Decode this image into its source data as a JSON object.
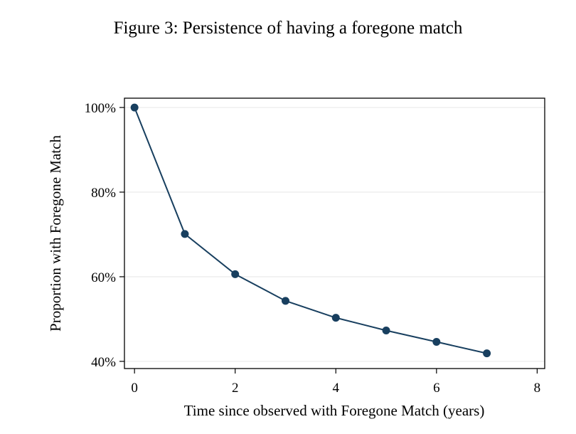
{
  "figure": {
    "title": "Figure 3: Persistence of having a foregone match"
  },
  "chart_data": {
    "type": "line",
    "title": "Figure 3: Persistence of having a foregone match",
    "xlabel": "Time since observed with Foregone Match (years)",
    "ylabel": "Proportion with Foregone Match",
    "x": [
      0,
      1,
      2,
      3,
      4,
      5,
      6,
      7
    ],
    "series": [
      {
        "values": [
          100,
          70.1,
          60.6,
          54.3,
          50.3,
          47.3,
          44.6,
          41.9
        ],
        "color": "#183f5f"
      }
    ],
    "xlim": [
      -0.2,
      8.15
    ],
    "ylim": [
      38.3,
      102.2
    ],
    "xticks": [
      0,
      2,
      4,
      6,
      8
    ],
    "xtick_labels": [
      "0",
      "2",
      "4",
      "6",
      "8"
    ],
    "yticks": [
      40,
      60,
      80,
      100
    ],
    "ytick_labels": [
      "40%",
      "60%",
      "80%",
      "100%"
    ],
    "grid": true,
    "grid_color": "#e6e6e6",
    "legend": "none"
  }
}
